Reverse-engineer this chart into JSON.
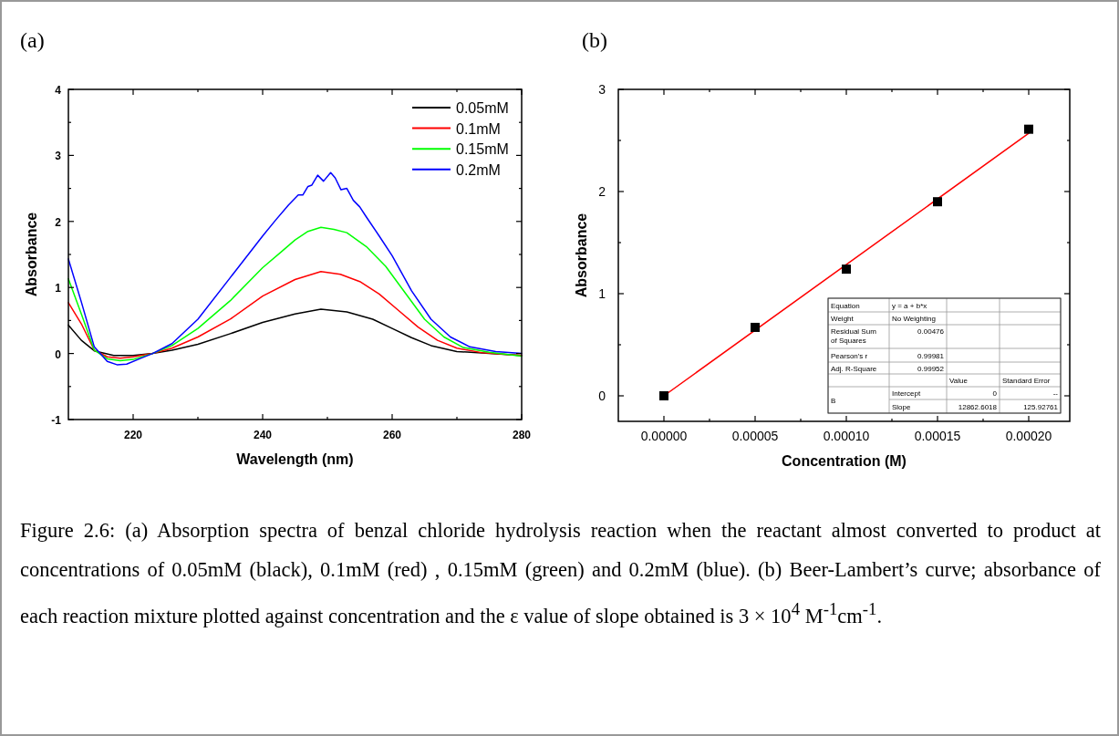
{
  "chart_data": [
    {
      "type": "line",
      "title": "(a)",
      "xlabel": "Wavelength (nm)",
      "ylabel": "Absorbance",
      "xlim": [
        210,
        280
      ],
      "ylim": [
        -1,
        4
      ],
      "xticks": [
        220,
        {
          "value": 230,
          "label": null
        },
        240,
        {
          "value": 250,
          "label": null
        },
        260,
        {
          "value": 270,
          "label": null
        },
        280
      ],
      "yticks": [
        -1,
        {
          "value": -0.5,
          "label": null
        },
        0,
        {
          "value": 0.5,
          "label": null
        },
        1,
        {
          "value": 1.5,
          "label": null
        },
        2,
        {
          "value": 2.5,
          "label": null
        },
        3,
        {
          "value": 3.5,
          "label": null
        },
        4
      ],
      "legend": "top right",
      "line_style": "solid",
      "series": [
        {
          "name": "0.05mM",
          "color": "#000000",
          "x": [
            210,
            212,
            214,
            217,
            220,
            223,
            226,
            230,
            235,
            240,
            245,
            249,
            253,
            257,
            260,
            263,
            266,
            270,
            275,
            280
          ],
          "values": [
            0.43,
            0.2,
            0.04,
            -0.03,
            -0.03,
            0.0,
            0.05,
            0.14,
            0.3,
            0.47,
            0.6,
            0.67,
            0.63,
            0.52,
            0.38,
            0.24,
            0.12,
            0.03,
            0.0,
            -0.03
          ]
        },
        {
          "name": "0.1mM",
          "color": "#ff0000",
          "x": [
            210,
            212,
            214,
            216,
            218,
            220,
            223,
            226,
            230,
            235,
            240,
            245,
            249,
            252,
            255,
            258,
            261,
            264,
            267,
            270,
            274,
            280
          ],
          "values": [
            0.77,
            0.45,
            0.05,
            -0.05,
            -0.07,
            -0.05,
            0.0,
            0.08,
            0.25,
            0.52,
            0.87,
            1.12,
            1.24,
            1.2,
            1.09,
            0.9,
            0.65,
            0.4,
            0.2,
            0.08,
            0.01,
            -0.03
          ]
        },
        {
          "name": "0.15mM",
          "color": "#00ff00",
          "x": [
            210,
            212,
            214,
            216,
            218,
            220,
            223,
            226,
            230,
            235,
            240,
            243,
            245,
            247,
            249,
            251,
            253,
            256,
            259,
            262,
            265,
            268,
            271,
            275,
            280
          ],
          "values": [
            1.13,
            0.6,
            0.05,
            -0.08,
            -0.11,
            -0.09,
            0.0,
            0.12,
            0.38,
            0.8,
            1.3,
            1.55,
            1.72,
            1.85,
            1.91,
            1.88,
            1.83,
            1.62,
            1.32,
            0.92,
            0.52,
            0.25,
            0.09,
            0.02,
            -0.04
          ]
        },
        {
          "name": "0.2mM",
          "color": "#0000ff",
          "x": [
            210,
            212,
            214,
            216,
            217.5,
            219,
            221,
            223,
            226,
            230,
            235,
            240,
            242,
            244,
            245.5,
            246.2,
            247,
            247.6,
            248.5,
            249.4,
            250.5,
            251.2,
            252.1,
            253,
            254,
            255,
            256,
            258,
            260,
            263,
            266,
            269,
            272,
            276,
            280
          ],
          "values": [
            1.43,
            0.78,
            0.1,
            -0.12,
            -0.17,
            -0.16,
            -0.08,
            0.0,
            0.15,
            0.52,
            1.15,
            1.78,
            2.02,
            2.25,
            2.4,
            2.4,
            2.53,
            2.55,
            2.7,
            2.61,
            2.74,
            2.66,
            2.48,
            2.5,
            2.32,
            2.22,
            2.07,
            1.78,
            1.48,
            0.95,
            0.52,
            0.25,
            0.1,
            0.03,
            0.0
          ]
        }
      ],
      "annotations": [
        "Figure 2.6: (a) Absorption spectra of benzal chloride hydrolysis reaction when the reactant almost converted to product at concentrations of 0.05mM (black), 0.1mM (red) , 0.15mM (green) and 0.2mM (blue).  (b) Beer-Lambert’s curve; absorbance of each reaction mixture plotted against concentration and the ε value of slope obtained is 3 × 10$^{4}$ M$^{-1}$cm$^{-1}$."
      ]
    },
    {
      "type": "scatter",
      "title": "(b)",
      "xlabel": "Concentration (M)",
      "ylabel": "Absorbance",
      "xlim": [
        -2.5e-05,
        0.0002225
      ],
      "ylim": [
        -0.25,
        3
      ],
      "xticks": [
        {
          "value": 0,
          "label": "0.00000"
        },
        {
          "value": 2.5e-05,
          "label": null
        },
        {
          "value": 5e-05,
          "label": "0.00005"
        },
        {
          "value": 7.5e-05,
          "label": null
        },
        {
          "value": 0.0001,
          "label": "0.00010"
        },
        {
          "value": 0.000125,
          "label": null
        },
        {
          "value": 0.00015,
          "label": "0.00015"
        },
        {
          "value": 0.000175,
          "label": null
        },
        {
          "value": 0.0002,
          "label": "0.00020"
        }
      ],
      "yticks": [
        0,
        {
          "value": 0.5,
          "label": null
        },
        1,
        {
          "value": 1.5,
          "label": null
        },
        2,
        {
          "value": 2.5,
          "label": null
        },
        3
      ],
      "series": [
        {
          "type": "line",
          "color": "#ff0000",
          "x": [
            0,
            0.0002
          ],
          "values": [
            0,
            2.57
          ]
        },
        {
          "color": "#000000",
          "marker": "square",
          "x": [
            0,
            5e-05,
            0.0001,
            0.00015,
            0.0002
          ],
          "values": [
            0,
            0.67,
            1.24,
            1.9,
            2.61
          ]
        }
      ],
      "annotations": [
        "Equation",
        "y = a + b*x",
        "Weight",
        "No Weighting",
        "Residual Sum of Squares",
        "0.00476",
        "Pearson's r",
        "0.99981",
        "Adj. R-Square",
        "0.99952",
        "Value",
        "Standard Error",
        "B",
        "Intercept",
        "0",
        "--",
        "Slope",
        "12862.6018",
        "125.92761"
      ]
    }
  ]
}
